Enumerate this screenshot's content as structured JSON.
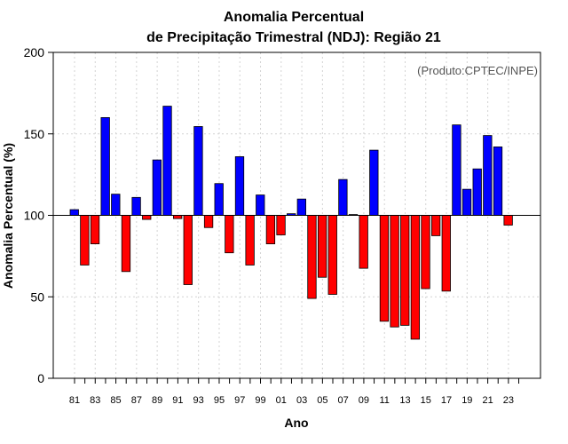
{
  "chart_data": {
    "type": "bar",
    "title_line1": "Anomalia Percentual",
    "title_line2": "de Precipitação Trimestral (NDJ): Região 21",
    "xlabel": "Ano",
    "ylabel": "Anomalia Percentual (%)",
    "credit": "(Produto:CPTEC/INPE)",
    "baseline": 100,
    "ylim": [
      0,
      200
    ],
    "yticks": [
      "0",
      "50",
      "100",
      "150",
      "200"
    ],
    "x": [
      "81",
      "82",
      "83",
      "84",
      "85",
      "86",
      "87",
      "88",
      "89",
      "90",
      "91",
      "92",
      "93",
      "94",
      "95",
      "96",
      "97",
      "98",
      "99",
      "00",
      "01",
      "02",
      "03",
      "04",
      "05",
      "06",
      "07",
      "08",
      "09",
      "10",
      "11",
      "12",
      "13",
      "14",
      "15",
      "16",
      "17",
      "18",
      "19",
      "20",
      "21",
      "22",
      "23"
    ],
    "xtick_labels": [
      "81",
      "83",
      "85",
      "87",
      "89",
      "91",
      "93",
      "95",
      "97",
      "99",
      "01",
      "03",
      "05",
      "07",
      "09",
      "11",
      "13",
      "15",
      "17",
      "19",
      "21",
      "23"
    ],
    "values": [
      103.5,
      69.5,
      82.5,
      160,
      113,
      65.5,
      111,
      97.5,
      134,
      167,
      98,
      57.5,
      154.5,
      92.5,
      119.5,
      77,
      136,
      69.5,
      112.5,
      82.5,
      88,
      101,
      110,
      49,
      62,
      51.5,
      122,
      100.5,
      67.5,
      140,
      35,
      31.5,
      32.5,
      24,
      55,
      87.5,
      53.5,
      155.5,
      116,
      128.5,
      149,
      142,
      94
    ],
    "colors": {
      "above": "#0000ff",
      "below": "#ff0000",
      "stroke": "#000000",
      "grid": "#d3d3d3"
    }
  }
}
